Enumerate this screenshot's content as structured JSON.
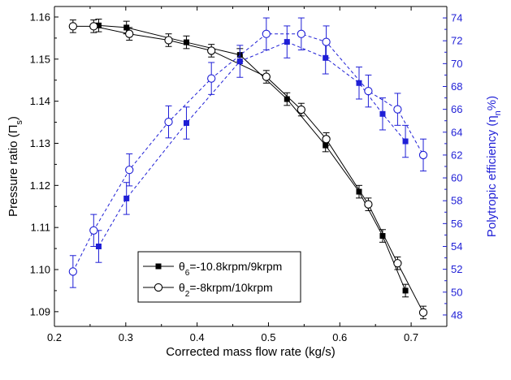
{
  "chart_data": {
    "type": "line",
    "xlabel": "Corrected mass flow rate (kg/s)",
    "ylabel_left": {
      "prefix": "Pressure ratio (Π",
      "sub": "s",
      "suffix": ")"
    },
    "ylabel_right": {
      "prefix": "Polytropic efficiency (η",
      "sub": "n",
      "suffix": "%)"
    },
    "xlim": [
      0.2,
      0.75
    ],
    "ylim_left": [
      1.0865,
      1.1625
    ],
    "ylim_right": [
      47,
      75
    ],
    "x_ticks": [
      "0.2",
      "0.3",
      "0.4",
      "0.5",
      "0.6",
      "0.7"
    ],
    "y_left_ticks": [
      "1.09",
      "1.10",
      "1.11",
      "1.12",
      "1.13",
      "1.14",
      "1.15",
      "1.16"
    ],
    "y_right_ticks": [
      "48",
      "50",
      "52",
      "54",
      "56",
      "58",
      "60",
      "62",
      "64",
      "66",
      "68",
      "70",
      "72",
      "74"
    ],
    "colors": {
      "axis_left": "#000000",
      "axis_right": "#1f1fd6",
      "series": "#1f1fd6"
    },
    "legend": {
      "position": "bottom-left",
      "items": [
        {
          "prefix": "θ",
          "sub": "6",
          "suffix": "=-10.8krpm/9krpm",
          "marker": "filled-square"
        },
        {
          "prefix": "θ",
          "sub": "2",
          "suffix": "=-8krpm/10krpm",
          "marker": "open-circle"
        }
      ]
    },
    "series": [
      {
        "name": "θ6=-10.8krpm/9krpm",
        "axis": "left",
        "marker": "filled-square",
        "line": "solid",
        "x": [
          0.262,
          0.301,
          0.385,
          0.46,
          0.526,
          0.58,
          0.627,
          0.66,
          0.692
        ],
        "y": [
          1.158,
          1.1575,
          1.154,
          1.151,
          1.1405,
          1.1295,
          1.1185,
          1.108,
          1.095
        ],
        "err": [
          0.0015,
          0.0015,
          0.0015,
          0.0015,
          0.0015,
          0.0015,
          0.0015,
          0.0015,
          0.0015
        ]
      },
      {
        "name": "θ2=-8krpm/10krpm",
        "axis": "left",
        "marker": "open-circle",
        "line": "solid",
        "x": [
          0.226,
          0.255,
          0.305,
          0.36,
          0.42,
          0.497,
          0.546,
          0.581,
          0.64,
          0.681,
          0.717
        ],
        "y": [
          1.1578,
          1.1578,
          1.156,
          1.1545,
          1.152,
          1.1458,
          1.138,
          1.131,
          1.1155,
          1.1015,
          1.0898
        ],
        "err": [
          0.0015,
          0.0015,
          0.0015,
          0.0015,
          0.0015,
          0.0015,
          0.0015,
          0.0015,
          0.0015,
          0.0015,
          0.0015
        ]
      },
      {
        "name": "θ6=-10.8krpm/9krpm",
        "axis": "right",
        "marker": "filled-square",
        "line": "dashed",
        "x": [
          0.262,
          0.301,
          0.385,
          0.46,
          0.526,
          0.58,
          0.627,
          0.66,
          0.692
        ],
        "y": [
          54.0,
          58.2,
          64.8,
          70.2,
          71.9,
          70.5,
          68.3,
          65.6,
          63.2
        ],
        "err": [
          1.4,
          1.4,
          1.4,
          1.4,
          1.4,
          1.4,
          1.4,
          1.4,
          1.4
        ]
      },
      {
        "name": "θ2=-8krpm/10krpm",
        "axis": "right",
        "marker": "open-circle",
        "line": "dashed",
        "x": [
          0.226,
          0.255,
          0.305,
          0.36,
          0.42,
          0.497,
          0.546,
          0.581,
          0.64,
          0.681,
          0.717
        ],
        "y": [
          51.8,
          55.4,
          60.7,
          64.9,
          68.7,
          72.6,
          72.6,
          71.9,
          67.6,
          66.0,
          62.0
        ],
        "err": [
          1.4,
          1.4,
          1.4,
          1.4,
          1.4,
          1.4,
          1.4,
          1.4,
          1.4,
          1.4,
          1.4
        ]
      }
    ]
  }
}
